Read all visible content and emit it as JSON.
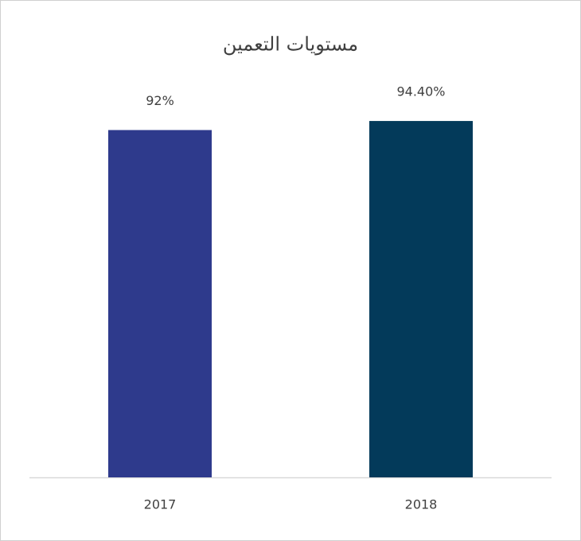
{
  "chart_data": {
    "type": "bar",
    "title": "مستويات التعمين",
    "categories": [
      "2017",
      "2018"
    ],
    "values": [
      92,
      94.4
    ],
    "value_labels": [
      "92%",
      "94.40%"
    ],
    "colors": [
      "#2e3a8c",
      "#033a5a"
    ]
  }
}
